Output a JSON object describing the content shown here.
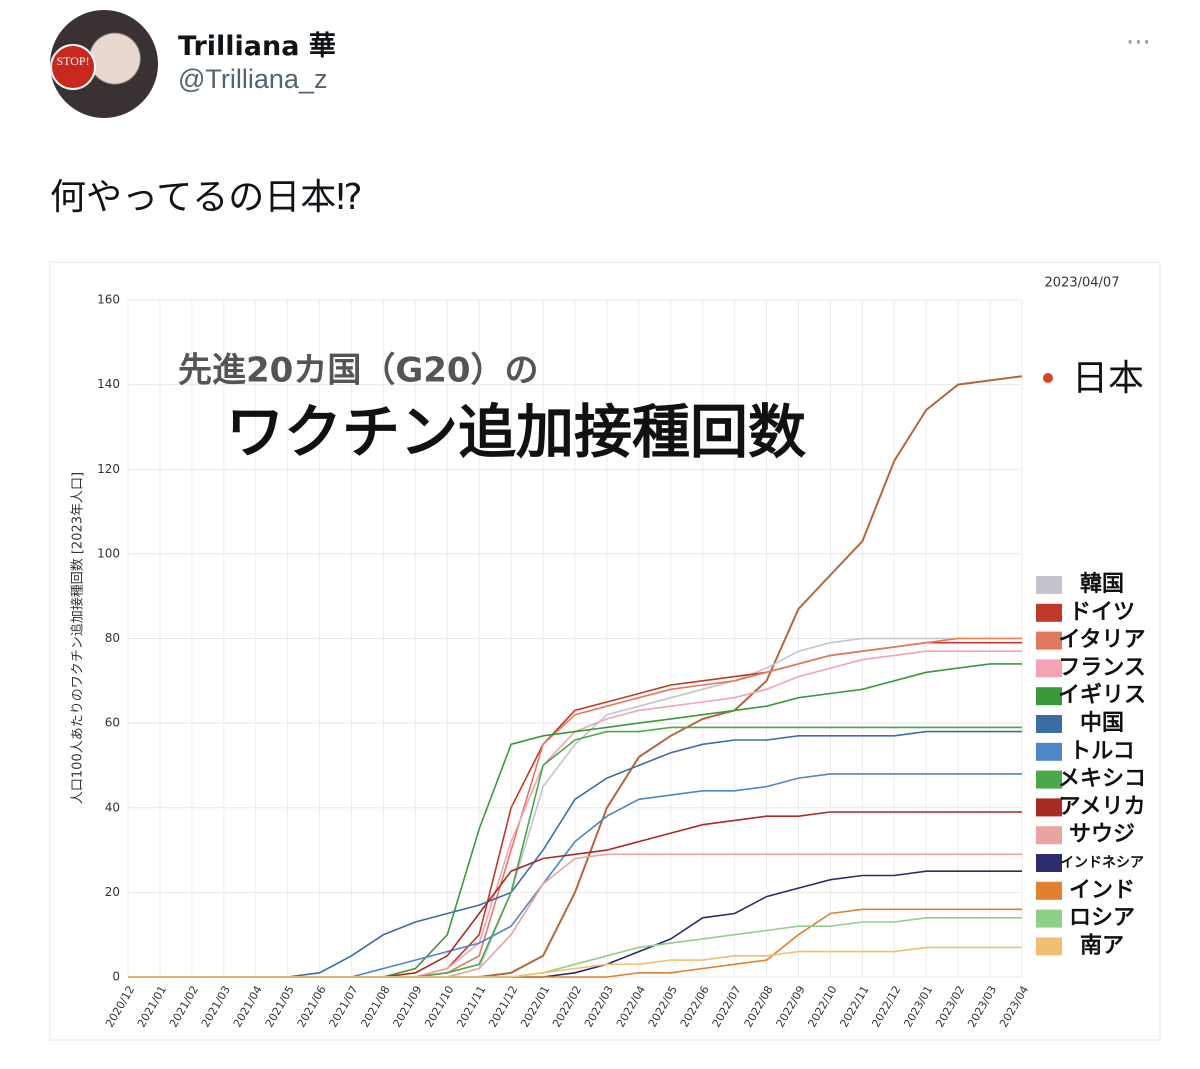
{
  "tweet": {
    "name": "Trilliana 華",
    "handle": "@Trilliana_z",
    "avatar_badge": "STOP!",
    "text": "何やってるの日本⁉"
  },
  "chart_data": {
    "type": "line",
    "subtitle": "先進20カ国（G20）の",
    "title": "ワクチン追加接種回数",
    "date": "2023/04/07",
    "y_label": "人口100人あたりのワクチン追加接種回数 [2023年人口]",
    "categories": [
      "2020/12",
      "2021/01",
      "2021/02",
      "2021/03",
      "2021/04",
      "2021/05",
      "2021/06",
      "2021/07",
      "2021/08",
      "2021/09",
      "2021/10",
      "2021/11",
      "2021/12",
      "2022/01",
      "2022/02",
      "2022/03",
      "2022/04",
      "2022/05",
      "2022/06",
      "2022/07",
      "2022/08",
      "2022/09",
      "2022/10",
      "2022/11",
      "2022/12",
      "2023/01",
      "2023/02",
      "2023/03",
      "2023/04"
    ],
    "ylim": [
      0,
      160
    ],
    "yticks": [
      0,
      20,
      40,
      60,
      80,
      100,
      120,
      140,
      160
    ],
    "grid": true,
    "legend": "right",
    "series": [
      {
        "name": "日本",
        "color": "#b5653a",
        "values": [
          0,
          0,
          0,
          0,
          0,
          0,
          0,
          0,
          0,
          0,
          0,
          0,
          1,
          5,
          20,
          40,
          52,
          57,
          61,
          63,
          70,
          87,
          95,
          103,
          122,
          134,
          140,
          141,
          142
        ]
      },
      {
        "name": "韓国",
        "color": "#c4c4cc",
        "values": [
          0,
          0,
          0,
          0,
          0,
          0,
          0,
          0,
          0,
          0,
          0,
          2,
          20,
          45,
          55,
          62,
          64,
          66,
          68,
          70,
          73,
          77,
          79,
          80,
          80,
          80,
          80,
          80,
          80
        ]
      },
      {
        "name": "ドイツ",
        "color": "#c0392b",
        "values": [
          0,
          0,
          0,
          0,
          0,
          0,
          0,
          0,
          0,
          0,
          2,
          10,
          40,
          55,
          63,
          65,
          67,
          69,
          70,
          71,
          72,
          74,
          76,
          77,
          78,
          79,
          79,
          79,
          79
        ]
      },
      {
        "name": "イタリア",
        "color": "#e07a5f",
        "values": [
          0,
          0,
          0,
          0,
          0,
          0,
          0,
          0,
          0,
          0,
          1,
          5,
          30,
          55,
          62,
          64,
          66,
          68,
          69,
          70,
          72,
          74,
          76,
          77,
          78,
          79,
          80,
          80,
          80
        ]
      },
      {
        "name": "フランス",
        "color": "#f2a3b5",
        "values": [
          0,
          0,
          0,
          0,
          0,
          0,
          0,
          0,
          0,
          0,
          2,
          8,
          32,
          50,
          58,
          61,
          63,
          64,
          65,
          66,
          68,
          71,
          73,
          75,
          76,
          77,
          77,
          77,
          77
        ]
      },
      {
        "name": "イギリス",
        "color": "#3a9a3a",
        "values": [
          0,
          0,
          0,
          0,
          0,
          0,
          0,
          0,
          0,
          2,
          10,
          35,
          55,
          57,
          58,
          59,
          60,
          61,
          62,
          63,
          64,
          66,
          67,
          68,
          70,
          72,
          73,
          74,
          74
        ]
      },
      {
        "name": "中国",
        "color": "#3a6ea5",
        "values": [
          0,
          0,
          0,
          0,
          0,
          0,
          1,
          5,
          10,
          13,
          15,
          17,
          20,
          30,
          42,
          47,
          50,
          53,
          55,
          56,
          56,
          57,
          57,
          57,
          57,
          58,
          58,
          58,
          58
        ]
      },
      {
        "name": "トルコ",
        "color": "#4f86c6",
        "values": [
          0,
          0,
          0,
          0,
          0,
          0,
          0,
          0,
          2,
          4,
          6,
          8,
          12,
          22,
          32,
          38,
          42,
          43,
          44,
          44,
          45,
          47,
          48,
          48,
          48,
          48,
          48,
          48,
          48
        ]
      },
      {
        "name": "メキシコ",
        "color": "#4aa84a",
        "values": [
          0,
          0,
          0,
          0,
          0,
          0,
          0,
          0,
          0,
          0,
          1,
          3,
          20,
          50,
          56,
          58,
          58,
          59,
          59,
          59,
          59,
          59,
          59,
          59,
          59,
          59,
          59,
          59,
          59
        ]
      },
      {
        "name": "アメリカ",
        "color": "#a82a24",
        "values": [
          0,
          0,
          0,
          0,
          0,
          0,
          0,
          0,
          0,
          1,
          5,
          15,
          25,
          28,
          29,
          30,
          32,
          34,
          36,
          37,
          38,
          38,
          39,
          39,
          39,
          39,
          39,
          39,
          39
        ]
      },
      {
        "name": "サウジ",
        "color": "#e8a4a0",
        "values": [
          0,
          0,
          0,
          0,
          0,
          0,
          0,
          0,
          0,
          0,
          0,
          2,
          10,
          22,
          28,
          29,
          29,
          29,
          29,
          29,
          29,
          29,
          29,
          29,
          29,
          29,
          29,
          29,
          29
        ]
      },
      {
        "name": "インドネシア",
        "color": "#2c2c6c",
        "values": [
          0,
          0,
          0,
          0,
          0,
          0,
          0,
          0,
          0,
          0,
          0,
          0,
          0,
          0,
          1,
          3,
          6,
          9,
          14,
          15,
          19,
          21,
          23,
          24,
          24,
          25,
          25,
          25,
          25
        ]
      },
      {
        "name": "インド",
        "color": "#e08030",
        "values": [
          0,
          0,
          0,
          0,
          0,
          0,
          0,
          0,
          0,
          0,
          0,
          0,
          0,
          0,
          0,
          0,
          1,
          1,
          2,
          3,
          4,
          10,
          15,
          16,
          16,
          16,
          16,
          16,
          16
        ]
      },
      {
        "name": "ロシア",
        "color": "#90cf8a",
        "values": [
          0,
          0,
          0,
          0,
          0,
          0,
          0,
          0,
          0,
          0,
          0,
          0,
          0,
          1,
          3,
          5,
          7,
          8,
          9,
          10,
          11,
          12,
          12,
          13,
          13,
          14,
          14,
          14,
          14
        ]
      },
      {
        "name": "南ア",
        "color": "#f0c070",
        "values": [
          0,
          0,
          0,
          0,
          0,
          0,
          0,
          0,
          0,
          0,
          0,
          0,
          0,
          1,
          2,
          3,
          3,
          4,
          4,
          5,
          5,
          6,
          6,
          6,
          6,
          7,
          7,
          7,
          7
        ]
      }
    ]
  }
}
